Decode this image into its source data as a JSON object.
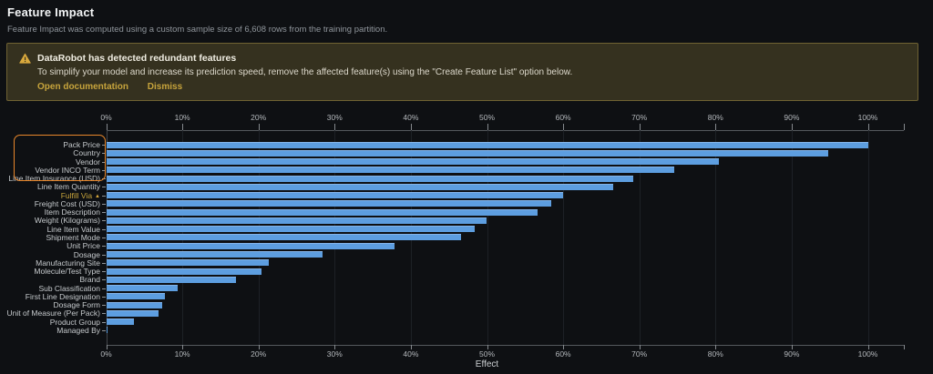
{
  "page": {
    "title": "Feature Impact",
    "subtitle": "Feature Impact was computed using a custom sample size of 6,608 rows from the training partition."
  },
  "banner": {
    "icon": "warning-triangle-icon",
    "title": "DataRobot has detected redundant features",
    "body": "To simplify your model and increase its prediction speed, remove the affected feature(s) using the \"Create Feature List\" option below.",
    "links": {
      "open_documentation": "Open documentation",
      "dismiss": "Dismiss"
    }
  },
  "chart_data": {
    "type": "bar",
    "orientation": "horizontal",
    "xlabel": "Effect",
    "x_tick_labels": [
      "0%",
      "10%",
      "20%",
      "30%",
      "40%",
      "50%",
      "60%",
      "70%",
      "80%",
      "90%",
      "100%"
    ],
    "xlim": [
      0,
      105
    ],
    "grid": true,
    "bar_color": "#5d9ee0",
    "categories": [
      "Pack Price",
      "Country",
      "Vendor",
      "Vendor INCO Term",
      "Line Item Insurance (USD)",
      "Line Item Quantity",
      "Fulfill Via",
      "Freight Cost (USD)",
      "Item Description",
      "Weight (Kilograms)",
      "Line Item Value",
      "Shipment Mode",
      "Unit Price",
      "Dosage",
      "Manufacturing Site",
      "Molecule/Test Type",
      "Brand",
      "Sub Classification",
      "First Line Designation",
      "Dosage Form",
      "Unit of Measure (Per Pack)",
      "Product Group",
      "Managed By"
    ],
    "values": [
      100,
      94.8,
      80.5,
      74.6,
      69.2,
      66.6,
      60,
      58.4,
      56.6,
      49.9,
      48.4,
      46.6,
      37.9,
      28.4,
      21.3,
      20.4,
      17,
      9.4,
      7.7,
      7.3,
      6.9,
      3.7,
      0.2
    ],
    "redundant_highlighted_features": [
      "Pack Price",
      "Country",
      "Vendor",
      "Vendor INCO Term",
      "Line Item Insurance (USD)"
    ],
    "warning_feature": "Fulfill Via",
    "highlight_box_color": "#e8872b",
    "warning_color": "#c7a43c"
  }
}
